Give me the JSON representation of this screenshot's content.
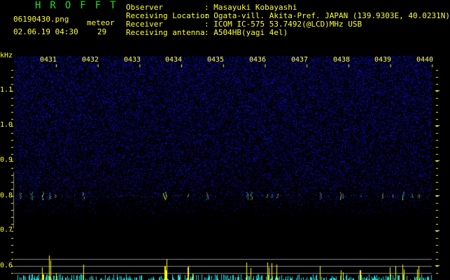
{
  "header": {
    "app_title": "HROFFT",
    "filename": "06190430.png",
    "datetime": "02.06.19 04:30",
    "meteor_label": "meteor",
    "meteor_count": "29"
  },
  "info": [
    {
      "label": "Observer",
      "value": ": Masayuki Kobayashi"
    },
    {
      "label": "Receiving Location",
      "value": ": Ogata-vill. Akita-Pref. JAPAN (139.9303E, 40.0231N)"
    },
    {
      "label": "Receiver",
      "value": ": ICOM IC-575 53.7492(@LCD)MHz USB"
    },
    {
      "label": "Receiving antenna",
      "value": ": A504HB(yagi 4el)"
    }
  ],
  "axis": {
    "y_unit": "kHz",
    "time_ticks": [
      "0431",
      "0432",
      "0433",
      "0434",
      "0435",
      "0436",
      "0437",
      "0438",
      "0439",
      "0440"
    ],
    "freq_ticks": [
      "1.1",
      "1.0",
      "0.9",
      "0.8",
      "0.7",
      "0.6"
    ]
  },
  "colors": {
    "text": "#ffff33",
    "title": "#22dd22",
    "noise": "#1a1aa0",
    "bar_low": "#22dddd",
    "bar_high": "#ffff00",
    "grid": "#888888"
  }
}
